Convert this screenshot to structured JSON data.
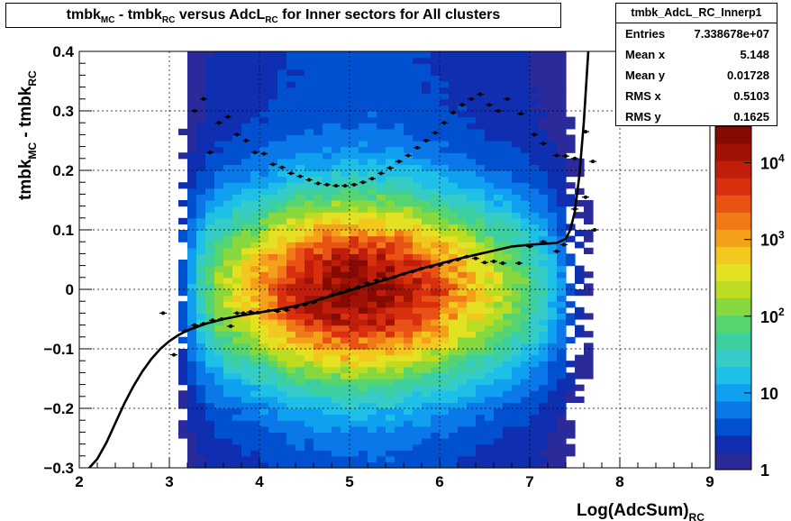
{
  "title": {
    "part1": "tmbk",
    "sub1": "MC",
    "part2": " - tmbk",
    "sub2": "RC",
    "part3": " versus AdcL",
    "sub3": "RC",
    "part4": " for Inner sectors for All clusters"
  },
  "stats": {
    "name": "tmbk_AdcL_RC_Innerp1",
    "rows": [
      {
        "key": "Entries",
        "value": "7.338678e+07"
      },
      {
        "key": "Mean x",
        "value": "5.148"
      },
      {
        "key": "Mean y",
        "value": "0.01728"
      },
      {
        "key": "RMS x",
        "value": "0.5103"
      },
      {
        "key": "RMS y",
        "value": "0.1625"
      }
    ]
  },
  "chart_data": {
    "type": "heatmap",
    "xlabel_main": "Log(AdcSum)",
    "xlabel_sub": "RC",
    "ylabel_main1": "tmbk",
    "ylabel_sub1": "MC",
    "ylabel_main2": " - tmbk",
    "ylabel_sub2": "RC",
    "xlim": [
      2,
      9
    ],
    "ylim": [
      -0.3,
      0.4
    ],
    "xticks": [
      "2",
      "3",
      "4",
      "5",
      "6",
      "7",
      "8",
      "9"
    ],
    "yticks": [
      "−0.3",
      "−0.2",
      "−0.1",
      "0",
      "0.1",
      "0.2",
      "0.3",
      "0.4"
    ],
    "grid": true,
    "colorbar": {
      "scale": "log",
      "min": 1,
      "max": 30000,
      "labels": [
        "1",
        "10",
        "10",
        "10",
        "10"
      ],
      "exponents": [
        "",
        "",
        "2",
        "3",
        "4"
      ],
      "values": [
        1,
        10,
        100,
        1000,
        10000
      ]
    },
    "palette": [
      "#2a2a9a",
      "#0f2fb0",
      "#0050d0",
      "#0a78e8",
      "#10a0f0",
      "#1ec0e8",
      "#35ccc8",
      "#3ecfa0",
      "#55d470",
      "#86d83e",
      "#bcdc22",
      "#e4e022",
      "#f2c81e",
      "#f5a01a",
      "#f07816",
      "#e85214",
      "#d8300f",
      "#c01e0a",
      "#a01204",
      "#840a02"
    ],
    "intensity_model": {
      "x_profile": [
        [
          3.1,
          0.08
        ],
        [
          3.3,
          0.3
        ],
        [
          3.5,
          0.47
        ],
        [
          3.7,
          0.56
        ],
        [
          3.9,
          0.63
        ],
        [
          4.1,
          0.72
        ],
        [
          4.3,
          0.81
        ],
        [
          4.5,
          0.88
        ],
        [
          4.7,
          0.93
        ],
        [
          4.9,
          0.97
        ],
        [
          5.1,
          0.98
        ],
        [
          5.3,
          0.96
        ],
        [
          5.5,
          0.93
        ],
        [
          5.7,
          0.88
        ],
        [
          5.9,
          0.81
        ],
        [
          6.1,
          0.73
        ],
        [
          6.3,
          0.66
        ],
        [
          6.5,
          0.59
        ],
        [
          6.7,
          0.52
        ],
        [
          6.9,
          0.45
        ],
        [
          7.1,
          0.36
        ],
        [
          7.3,
          0.24
        ],
        [
          7.5,
          0.1
        ],
        [
          7.7,
          0.02
        ]
      ],
      "y_sigma": 0.11,
      "y_center": 0.0
    },
    "mean_profile": {
      "name": "profile",
      "points": [
        [
          2.93,
          -0.04
        ],
        [
          3.05,
          -0.11
        ],
        [
          3.18,
          -0.07
        ],
        [
          3.28,
          -0.06
        ],
        [
          3.38,
          -0.058
        ],
        [
          3.48,
          -0.052
        ],
        [
          3.58,
          -0.05
        ],
        [
          3.68,
          -0.062
        ],
        [
          3.75,
          -0.04
        ],
        [
          3.82,
          -0.04
        ],
        [
          3.9,
          -0.038
        ],
        [
          3.98,
          -0.039
        ],
        [
          4.1,
          -0.036
        ],
        [
          4.2,
          -0.037
        ],
        [
          4.3,
          -0.035
        ],
        [
          4.4,
          -0.03
        ],
        [
          4.5,
          -0.026
        ],
        [
          4.6,
          -0.022
        ],
        [
          4.7,
          -0.015
        ],
        [
          4.8,
          -0.01
        ],
        [
          4.9,
          -0.006
        ],
        [
          5.0,
          -0.001
        ],
        [
          5.1,
          0.004
        ],
        [
          5.2,
          0.01
        ],
        [
          5.3,
          0.015
        ],
        [
          5.4,
          0.018
        ],
        [
          5.5,
          0.021
        ],
        [
          5.6,
          0.026
        ],
        [
          5.7,
          0.03
        ],
        [
          5.8,
          0.035
        ],
        [
          5.9,
          0.038
        ],
        [
          6.0,
          0.041
        ],
        [
          6.1,
          0.046
        ],
        [
          6.2,
          0.05
        ],
        [
          6.3,
          0.055
        ],
        [
          6.4,
          0.052
        ],
        [
          6.5,
          0.045
        ],
        [
          6.6,
          0.047
        ],
        [
          6.7,
          0.044
        ],
        [
          6.88,
          0.044
        ],
        [
          7.0,
          0.072
        ],
        [
          7.15,
          0.08
        ],
        [
          7.3,
          0.064
        ],
        [
          7.38,
          0.075
        ],
        [
          7.5,
          0.135
        ],
        [
          7.62,
          0.155
        ],
        [
          7.72,
          0.1
        ]
      ],
      "upper_points": [
        [
          3.28,
          0.3
        ],
        [
          3.38,
          0.32
        ],
        [
          3.45,
          0.23
        ],
        [
          3.55,
          0.28
        ],
        [
          3.65,
          0.29
        ],
        [
          3.75,
          0.26
        ],
        [
          3.85,
          0.25
        ],
        [
          3.95,
          0.23
        ],
        [
          4.05,
          0.228
        ],
        [
          4.15,
          0.21
        ],
        [
          4.25,
          0.205
        ],
        [
          4.35,
          0.195
        ],
        [
          4.45,
          0.19
        ],
        [
          4.55,
          0.184
        ],
        [
          4.65,
          0.178
        ],
        [
          4.75,
          0.176
        ],
        [
          4.85,
          0.174
        ],
        [
          4.95,
          0.174
        ],
        [
          5.05,
          0.176
        ],
        [
          5.15,
          0.18
        ],
        [
          5.25,
          0.186
        ],
        [
          5.35,
          0.195
        ],
        [
          5.45,
          0.204
        ],
        [
          5.55,
          0.215
        ],
        [
          5.65,
          0.225
        ],
        [
          5.75,
          0.238
        ],
        [
          5.85,
          0.25
        ],
        [
          5.95,
          0.263
        ],
        [
          6.05,
          0.28
        ],
        [
          6.15,
          0.297
        ],
        [
          6.25,
          0.31
        ],
        [
          6.35,
          0.32
        ],
        [
          6.45,
          0.328
        ],
        [
          6.55,
          0.31
        ],
        [
          6.65,
          0.3
        ],
        [
          6.75,
          0.32
        ],
        [
          6.9,
          0.295
        ],
        [
          7.05,
          0.26
        ],
        [
          7.15,
          0.245
        ],
        [
          7.3,
          0.225
        ],
        [
          7.4,
          0.224
        ],
        [
          7.5,
          0.22
        ],
        [
          7.62,
          0.265
        ],
        [
          7.7,
          0.215
        ]
      ]
    },
    "fit_curve": {
      "name": "fit",
      "points": [
        [
          2.1,
          -0.302
        ],
        [
          2.2,
          -0.285
        ],
        [
          2.3,
          -0.258
        ],
        [
          2.4,
          -0.225
        ],
        [
          2.5,
          -0.192
        ],
        [
          2.6,
          -0.163
        ],
        [
          2.7,
          -0.138
        ],
        [
          2.8,
          -0.117
        ],
        [
          2.9,
          -0.1
        ],
        [
          3.0,
          -0.087
        ],
        [
          3.1,
          -0.077
        ],
        [
          3.2,
          -0.069
        ],
        [
          3.4,
          -0.058
        ],
        [
          3.6,
          -0.05
        ],
        [
          3.8,
          -0.044
        ],
        [
          4.0,
          -0.039
        ],
        [
          4.2,
          -0.034
        ],
        [
          4.4,
          -0.028
        ],
        [
          4.6,
          -0.02
        ],
        [
          4.8,
          -0.011
        ],
        [
          5.0,
          -0.002
        ],
        [
          5.2,
          0.007
        ],
        [
          5.4,
          0.016
        ],
        [
          5.6,
          0.026
        ],
        [
          5.8,
          0.035
        ],
        [
          6.0,
          0.043
        ],
        [
          6.2,
          0.051
        ],
        [
          6.4,
          0.058
        ],
        [
          6.6,
          0.065
        ],
        [
          6.8,
          0.072
        ],
        [
          7.0,
          0.075
        ],
        [
          7.2,
          0.077
        ],
        [
          7.3,
          0.078
        ],
        [
          7.4,
          0.085
        ],
        [
          7.45,
          0.1
        ],
        [
          7.5,
          0.13
        ],
        [
          7.55,
          0.19
        ],
        [
          7.6,
          0.28
        ],
        [
          7.65,
          0.4
        ],
        [
          7.68,
          0.45
        ]
      ]
    }
  }
}
